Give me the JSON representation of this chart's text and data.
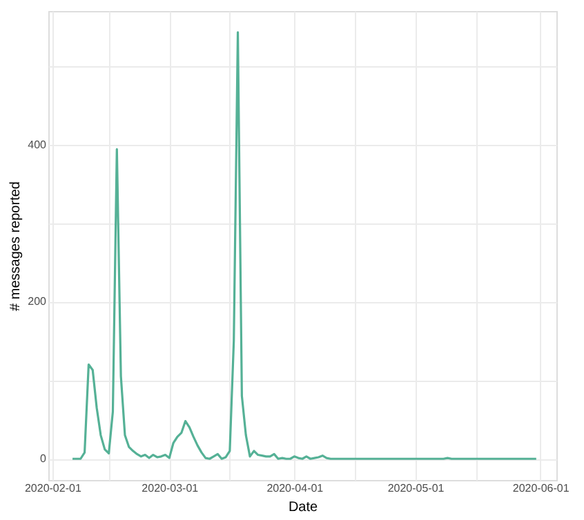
{
  "chart_data": {
    "type": "line",
    "xlabel": "Date",
    "ylabel": "# messages reported",
    "x": [
      "2020-02-06",
      "2020-02-07",
      "2020-02-08",
      "2020-02-09",
      "2020-02-10",
      "2020-02-11",
      "2020-02-12",
      "2020-02-13",
      "2020-02-14",
      "2020-02-15",
      "2020-02-16",
      "2020-02-17",
      "2020-02-18",
      "2020-02-19",
      "2020-02-20",
      "2020-02-21",
      "2020-02-22",
      "2020-02-23",
      "2020-02-24",
      "2020-02-25",
      "2020-02-26",
      "2020-02-27",
      "2020-02-28",
      "2020-02-29",
      "2020-03-01",
      "2020-03-02",
      "2020-03-03",
      "2020-03-04",
      "2020-03-05",
      "2020-03-06",
      "2020-03-07",
      "2020-03-08",
      "2020-03-09",
      "2020-03-10",
      "2020-03-11",
      "2020-03-12",
      "2020-03-13",
      "2020-03-14",
      "2020-03-15",
      "2020-03-16",
      "2020-03-17",
      "2020-03-18",
      "2020-03-19",
      "2020-03-20",
      "2020-03-21",
      "2020-03-22",
      "2020-03-23",
      "2020-03-24",
      "2020-03-25",
      "2020-03-26",
      "2020-03-27",
      "2020-03-28",
      "2020-03-29",
      "2020-03-30",
      "2020-03-31",
      "2020-04-01",
      "2020-04-02",
      "2020-04-03",
      "2020-04-04",
      "2020-04-05",
      "2020-04-06",
      "2020-04-07",
      "2020-04-08",
      "2020-04-09",
      "2020-04-10",
      "2020-05-08",
      "2020-05-09",
      "2020-05-10",
      "2020-05-31"
    ],
    "series": [
      {
        "color": "#55b196",
        "values": [
          0,
          0,
          0,
          8,
          120,
          113,
          65,
          30,
          12,
          7,
          60,
          394,
          105,
          30,
          15,
          10,
          6,
          3,
          5,
          1,
          5,
          2,
          3,
          5,
          1,
          20,
          28,
          33,
          48,
          40,
          28,
          17,
          8,
          1,
          0,
          3,
          6,
          0,
          2,
          10,
          150,
          543,
          80,
          30,
          3,
          10,
          5,
          4,
          3,
          3,
          6,
          0,
          1,
          0,
          0,
          3,
          1,
          0,
          3,
          0,
          1,
          2,
          4,
          1,
          0,
          0,
          1,
          0,
          0
        ]
      }
    ],
    "xlim": [
      "2020-01-31",
      "2020-06-05"
    ],
    "xticks": [
      "2020-02-01",
      {
        "value": "2020-02-15",
        "label": null
      },
      "2020-03-01",
      {
        "value": "2020-03-16",
        "label": null
      },
      "2020-04-01",
      {
        "value": "2020-04-16",
        "label": null
      },
      "2020-05-01",
      {
        "value": "2020-05-16",
        "label": null
      },
      "2020-06-01"
    ],
    "ylim": [
      -27,
      570
    ],
    "yticks": [
      0,
      {
        "value": 100,
        "label": null
      },
      200,
      {
        "value": 300,
        "label": null
      },
      400,
      {
        "value": 500,
        "label": null
      }
    ],
    "grid": true,
    "marker": "none",
    "line_style": "solid"
  }
}
